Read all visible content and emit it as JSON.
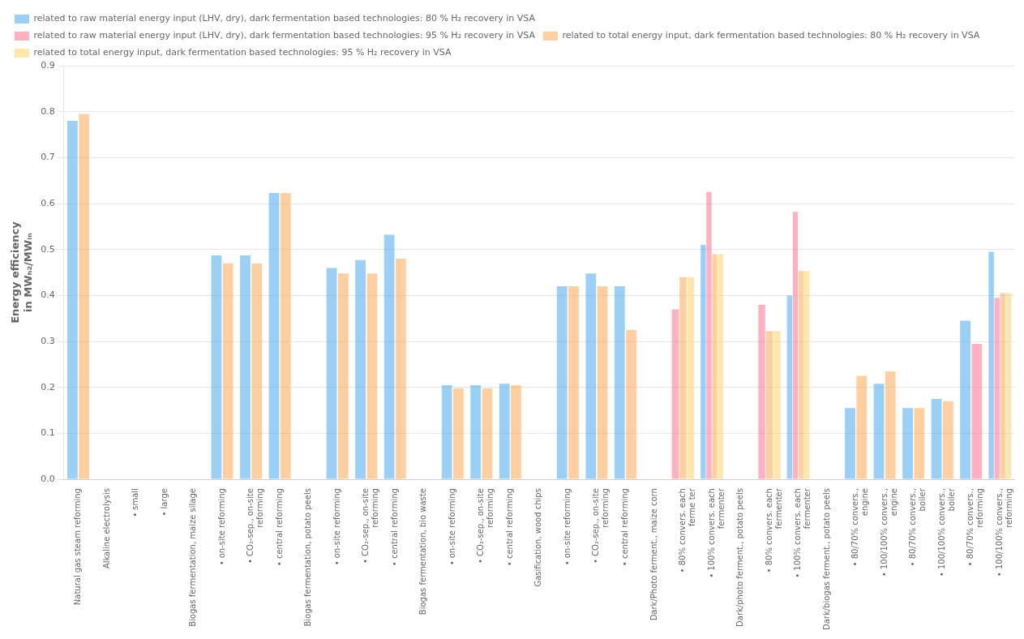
{
  "chart_data": {
    "type": "bar",
    "ylabel": "Energy efficiency\nin MWₕ₂/MWᵢₙ",
    "categories": [
      "Natural gas steam reforming",
      "Alkaline electrolysis",
      "• small",
      "• large",
      "Biogas fermentation, maize silage",
      "• on-site reforming",
      "• CO₂-sep., on-site\nreforming",
      "• central reforming",
      "Biogas fermentation, potato peels",
      "• on-site reforming",
      "• CO₂-sep., on-site\nreforming",
      "• central reforming",
      "Biogas fermentation, bio waste",
      "• on-site reforming",
      "• CO₂-sep., on-site\nreforming",
      "• central reforming",
      "Gasification, wood chips",
      "• on-site reforming",
      "• CO₂-sep., on-site\nreforming",
      "• central reforming",
      "Dark/Photo ferment., maize corn",
      "• 80% convers. each\nferme ter",
      "• 100% convers. each\nfermenter",
      "Dark/photo ferment., potato peels",
      "• 80% convers. each\nfermenter",
      "• 100% convers. each\nfermenter",
      "Dark/biogas ferment., potato peels",
      "• 80/70% convers.,\nengine",
      "• 100/100% convers.,\nengine",
      "• 80/70% convers.,\nboiler",
      "• 100/100% convers.,\nboiler",
      "• 80/70% convers.,\nreforming",
      "• 100/100% convers.,\nreforming"
    ],
    "series": [
      {
        "name": "related to raw material energy input (LHV, dry), dark fermentation based technologies: 80 % H₂ recovery in VSA",
        "values": [
          0.78,
          null,
          null,
          null,
          null,
          0.487,
          0.487,
          0.623,
          null,
          0.46,
          0.477,
          0.532,
          null,
          0.205,
          0.205,
          0.208,
          null,
          0.42,
          0.448,
          0.42,
          null,
          null,
          0.51,
          null,
          null,
          0.4,
          null,
          0.155,
          0.208,
          0.155,
          0.175,
          0.345,
          0.495
        ]
      },
      {
        "name": "related to raw material energy input (LHV, dry), dark fermentation based technologies: 95 % H₂ recovery in VSA",
        "values": [
          null,
          null,
          null,
          null,
          null,
          null,
          null,
          null,
          null,
          null,
          null,
          null,
          null,
          null,
          null,
          null,
          null,
          null,
          null,
          null,
          null,
          0.37,
          0.625,
          null,
          0.38,
          0.582,
          null,
          null,
          null,
          null,
          null,
          0.295,
          0.395
        ]
      },
      {
        "name": "related to total energy input, dark fermentation based technologies: 80 % H₂ recovery in VSA",
        "values": [
          0.795,
          null,
          null,
          null,
          null,
          0.47,
          0.47,
          0.623,
          null,
          0.448,
          0.448,
          0.48,
          null,
          0.198,
          0.198,
          0.205,
          null,
          0.42,
          0.42,
          0.325,
          null,
          0.44,
          0.49,
          null,
          0.322,
          0.453,
          null,
          0.225,
          0.235,
          0.155,
          0.17,
          null,
          0.405
        ]
      },
      {
        "name": "related to total energy input, dark fermentation based technologies: 95 % H₂ recovery in VSA",
        "values": [
          null,
          null,
          null,
          null,
          null,
          null,
          null,
          null,
          null,
          null,
          null,
          null,
          null,
          null,
          null,
          null,
          null,
          null,
          null,
          null,
          null,
          0.44,
          0.49,
          null,
          0.322,
          0.453,
          null,
          null,
          null,
          null,
          null,
          null,
          0.405
        ]
      }
    ],
    "ylim": [
      0.0,
      0.9
    ],
    "yticks": [
      {
        "value": 0.0,
        "label": "0.0"
      },
      {
        "value": 0.1,
        "label": "0.1"
      },
      {
        "value": 0.2,
        "label": "0.2"
      },
      {
        "value": 0.3,
        "label": "0.3"
      },
      {
        "value": 0.4,
        "label": "0.4"
      },
      {
        "value": 0.5,
        "label": "0.5"
      },
      {
        "value": 0.6,
        "label": "0.6"
      },
      {
        "value": 0.7,
        "label": "0.7"
      },
      {
        "value": 0.8,
        "label": "0.8"
      },
      {
        "value": 0.9,
        "label": "0.9"
      }
    ],
    "grid": true,
    "legend": "upper left"
  }
}
